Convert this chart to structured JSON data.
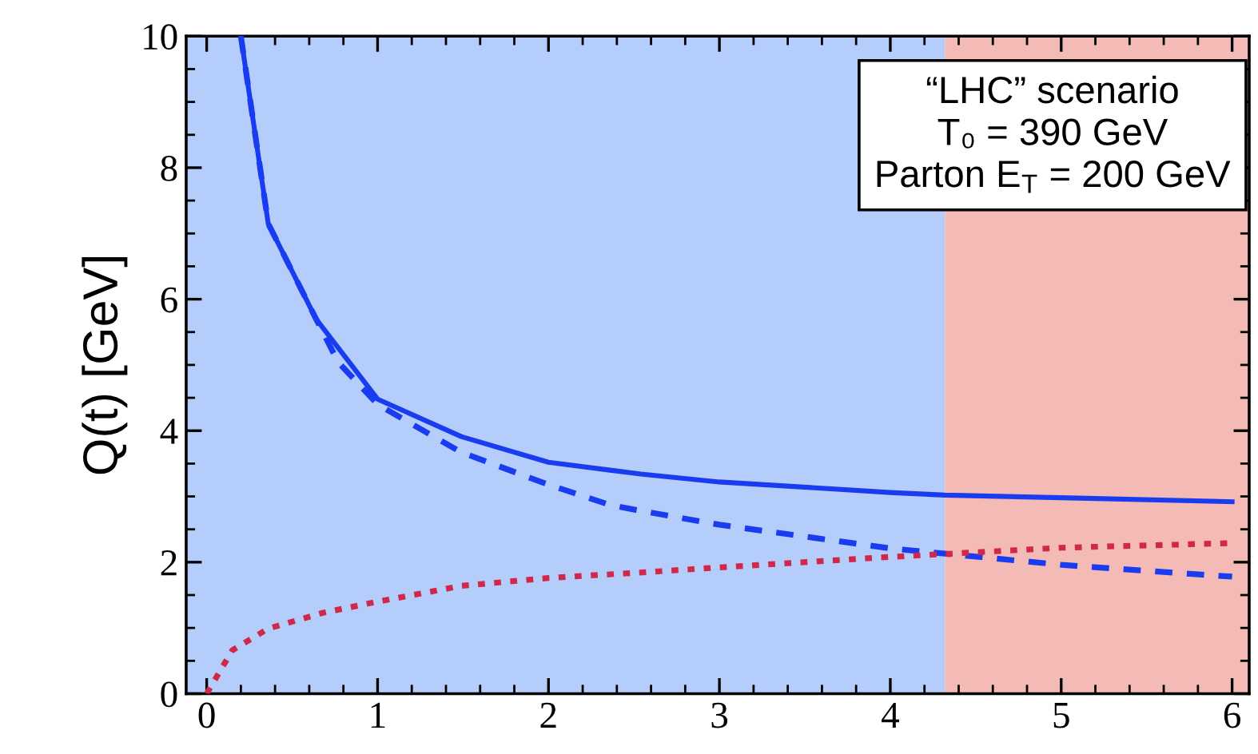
{
  "chart_data": {
    "type": "line",
    "ylabel": "Q(t) [GeV]",
    "annotations": [
      "“LHC” scenario",
      "T₀ = 390 GeV",
      "Parton E$_{T}$ = 200 GeV"
    ],
    "xlim": [
      -0.12,
      6.1
    ],
    "ylim": [
      0,
      10
    ],
    "xticks": [
      0,
      1,
      2,
      3,
      4,
      5,
      6
    ],
    "yticks": [
      0,
      2,
      4,
      6,
      8,
      10
    ],
    "grid": false,
    "marker": "none",
    "bands": [
      {
        "axis": "x",
        "from": -0.12,
        "to": 4.32,
        "color": "#b4cdfa"
      },
      {
        "axis": "x",
        "from": 4.32,
        "to": 6.1,
        "color": "#f4bab6"
      }
    ],
    "series": [
      {
        "color": "#1a3cf0",
        "line_style": "solid",
        "x": [
          0.2,
          0.36,
          0.64,
          1,
          1.49,
          2,
          2.36,
          2.54,
          3,
          4,
          4.32,
          5,
          6
        ],
        "values": [
          10,
          7.15,
          5.7,
          4.48,
          3.91,
          3.52,
          3.4,
          3.34,
          3.22,
          3.06,
          3.02,
          2.98,
          2.92
        ]
      },
      {
        "color": "#1a3cf0",
        "line_style": "dashed",
        "x": [
          0.2,
          0.36,
          0.64,
          0.77,
          1,
          1.49,
          2,
          2.36,
          2.52,
          3,
          4,
          4.32,
          5,
          6
        ],
        "values": [
          10,
          7.15,
          5.7,
          5.04,
          4.4,
          3.67,
          3.18,
          2.87,
          2.79,
          2.57,
          2.21,
          2.13,
          1.96,
          1.78
        ]
      },
      {
        "color": "#d0284a",
        "line_style": "dotted",
        "x": [
          0,
          0.15,
          0.36,
          0.68,
          1,
          1.49,
          2,
          2.52,
          3,
          4,
          5,
          6
        ],
        "values": [
          0,
          0.66,
          0.99,
          1.23,
          1.4,
          1.64,
          1.76,
          1.84,
          1.92,
          2.08,
          2.22,
          2.29
        ]
      }
    ]
  }
}
